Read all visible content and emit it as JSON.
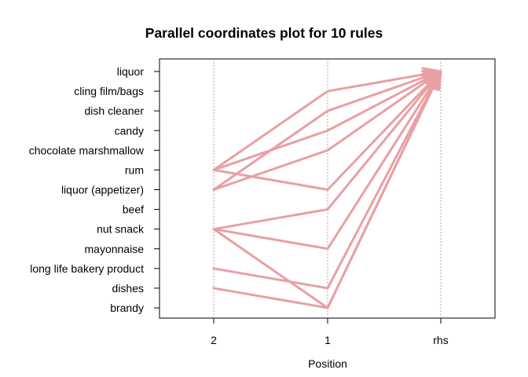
{
  "chart_data": {
    "type": "parallel-coordinates",
    "title": "Parallel coordinates plot for 10 rules",
    "xlabel": "Position",
    "axes": [
      "2",
      "1",
      "rhs"
    ],
    "items": [
      "liquor",
      "cling film/bags",
      "dish cleaner",
      "candy",
      "chocolate marshmallow",
      "rum",
      "liquor (appetizer)",
      "beef",
      "nut snack",
      "mayonnaise",
      "long life bakery product",
      "dishes",
      "brandy"
    ],
    "rules": [
      {
        "lhs2": "rum",
        "lhs1": "cling film/bags",
        "rhs": "liquor"
      },
      {
        "lhs2": "liquor (appetizer)",
        "lhs1": "dish cleaner",
        "rhs": "liquor"
      },
      {
        "lhs2": "rum",
        "lhs1": "candy",
        "rhs": "liquor"
      },
      {
        "lhs2": "liquor (appetizer)",
        "lhs1": "chocolate marshmallow",
        "rhs": "liquor"
      },
      {
        "lhs2": "rum",
        "lhs1": "liquor (appetizer)",
        "rhs": "liquor"
      },
      {
        "lhs2": "nut snack",
        "lhs1": "beef",
        "rhs": "liquor"
      },
      {
        "lhs2": "nut snack",
        "lhs1": "mayonnaise",
        "rhs": "liquor"
      },
      {
        "lhs2": "long life bakery product",
        "lhs1": "dishes",
        "rhs": "liquor"
      },
      {
        "lhs2": "dishes",
        "lhs1": "brandy",
        "rhs": "liquor"
      },
      {
        "lhs2": "nut snack",
        "lhs1": "brandy",
        "rhs": "liquor"
      }
    ],
    "line_color": "#E8A0A4",
    "grid_color": "#AAAAAA",
    "grid": true
  }
}
